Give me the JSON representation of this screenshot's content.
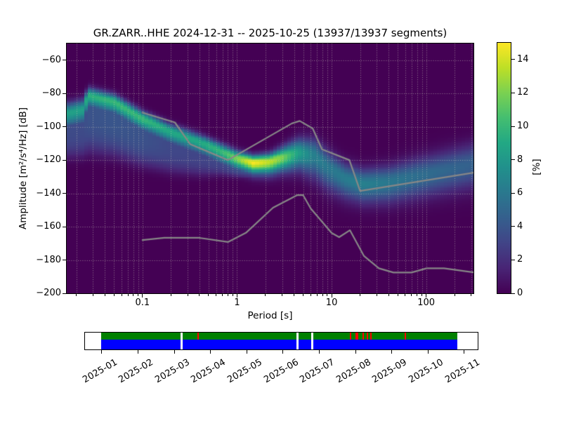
{
  "title": "GR.ZARR..HHE   2024-12-31 -- 2025-10-25  (13937/13937 segments)",
  "station": "GR.ZARR..HHE",
  "date_range": "2024-12-31 -- 2025-10-25",
  "segments": "13937/13937",
  "chart_data": {
    "type": "heatmap",
    "title": "GR.ZARR..HHE   2024-12-31 -- 2025-10-25  (13937/13937 segments)",
    "xlabel": "Period [s]",
    "ylabel": "Amplitude [m²/s⁴/Hz] [dB]",
    "colorbar_label": "[%]",
    "x_scale": "log",
    "xlim": [
      0.0158,
      316.23
    ],
    "ylim": [
      -200,
      -50
    ],
    "clim": [
      0,
      15
    ],
    "grid": "dotted",
    "legend": "none",
    "colormap": "viridis",
    "x_ticks": [
      0.1,
      1,
      10,
      100
    ],
    "x_tick_labels": [
      "0.1",
      "1",
      "10",
      "100"
    ],
    "y_ticks": [
      -60,
      -80,
      -100,
      -120,
      -140,
      -160,
      -180,
      -200
    ],
    "y_tick_labels": [
      "−60",
      "−80",
      "−100",
      "−120",
      "−140",
      "−160",
      "−180",
      "−200"
    ],
    "colorbar_ticks": [
      0,
      2,
      4,
      6,
      8,
      10,
      12,
      14
    ],
    "colorbar_tick_labels": [
      "0",
      "2",
      "4",
      "6",
      "8",
      "10",
      "12",
      "14"
    ],
    "viridis_stops": [
      [
        0.0,
        68,
        1,
        84
      ],
      [
        0.1,
        72,
        36,
        117
      ],
      [
        0.2,
        65,
        68,
        135
      ],
      [
        0.3,
        53,
        95,
        141
      ],
      [
        0.4,
        42,
        120,
        142
      ],
      [
        0.5,
        33,
        144,
        140
      ],
      [
        0.6,
        34,
        168,
        132
      ],
      [
        0.7,
        68,
        190,
        112
      ],
      [
        0.8,
        122,
        209,
        81
      ],
      [
        0.9,
        189,
        223,
        38
      ],
      [
        1.0,
        253,
        231,
        37
      ]
    ],
    "ppsd_ridge_note": "mode curve of PPSD: [period s, mode dB, peak %, sigma_up dB, sigma_down dB, shelf fraction, shelf depth dB]",
    "ppsd_ridge": [
      [
        0.0158,
        -92.0,
        8.5,
        4.0,
        6.0,
        0.4,
        26
      ],
      [
        0.024,
        -89.5,
        8.5,
        4.0,
        6.0,
        0.4,
        28
      ],
      [
        0.0265,
        -81.0,
        9.5,
        3.0,
        5.0,
        0.4,
        34
      ],
      [
        0.05,
        -85.0,
        10.0,
        3.0,
        5.0,
        0.4,
        32
      ],
      [
        0.1,
        -95.0,
        10.0,
        3.0,
        5.0,
        0.38,
        28
      ],
      [
        0.2,
        -103.0,
        9.0,
        3.0,
        5.0,
        0.36,
        24
      ],
      [
        0.4,
        -109.0,
        9.0,
        3.0,
        5.0,
        0.34,
        20
      ],
      [
        0.7,
        -115.0,
        10.0,
        3.0,
        5.0,
        0.32,
        14
      ],
      [
        1.0,
        -119.0,
        12.0,
        3.0,
        4.5,
        0.32,
        11
      ],
      [
        1.5,
        -121.5,
        15.0,
        2.8,
        4.5,
        0.3,
        9
      ],
      [
        2.2,
        -121.0,
        13.5,
        3.2,
        5.0,
        0.3,
        9
      ],
      [
        3.0,
        -118.5,
        12.0,
        4.0,
        5.5,
        0.3,
        10
      ],
      [
        4.5,
        -115.5,
        8.5,
        5.5,
        7.0,
        0.35,
        12
      ],
      [
        6.5,
        -117.0,
        6.5,
        6.5,
        9.0,
        0.4,
        14
      ],
      [
        9.0,
        -124.0,
        6.0,
        6.5,
        9.0,
        0.3,
        12
      ],
      [
        14.0,
        -131.0,
        6.2,
        6.0,
        8.0,
        0.25,
        11
      ],
      [
        22.0,
        -134.5,
        6.5,
        6.0,
        7.5,
        0.22,
        10
      ],
      [
        40.0,
        -133.5,
        6.0,
        6.5,
        8.0,
        0.22,
        10
      ],
      [
        70.0,
        -130.5,
        5.5,
        7.0,
        8.5,
        0.22,
        10
      ],
      [
        150.0,
        -126.5,
        5.0,
        7.5,
        9.0,
        0.22,
        11
      ],
      [
        316.23,
        -122.5,
        4.6,
        8.0,
        9.5,
        0.22,
        12
      ]
    ],
    "noise_models": {
      "color": "#878787",
      "nhnm": [
        [
          0.1,
          -91.5
        ],
        [
          0.22,
          -97.4
        ],
        [
          0.32,
          -110.5
        ],
        [
          0.8,
          -120.0
        ],
        [
          3.8,
          -98.0
        ],
        [
          4.6,
          -96.5
        ],
        [
          6.3,
          -101.0
        ],
        [
          7.9,
          -113.5
        ],
        [
          15.4,
          -120.0
        ],
        [
          20.0,
          -138.5
        ],
        [
          316.23,
          -127.6
        ]
      ],
      "nlnm": [
        [
          0.1,
          -168.0
        ],
        [
          0.17,
          -166.7
        ],
        [
          0.4,
          -166.7
        ],
        [
          0.8,
          -169.2
        ],
        [
          1.24,
          -163.7
        ],
        [
          2.4,
          -148.6
        ],
        [
          4.3,
          -141.1
        ],
        [
          5.0,
          -141.1
        ],
        [
          6.0,
          -149.0
        ],
        [
          10.0,
          -163.8
        ],
        [
          12.0,
          -166.3
        ],
        [
          15.6,
          -162.1
        ],
        [
          21.9,
          -177.5
        ],
        [
          31.6,
          -185.0
        ],
        [
          45.0,
          -187.5
        ],
        [
          70.0,
          -187.5
        ],
        [
          101.0,
          -185.0
        ],
        [
          154.0,
          -185.0
        ],
        [
          316.23,
          -187.4
        ]
      ]
    }
  },
  "timeline": {
    "green": "#008000",
    "blue": "#0000ff",
    "red": "#ff0000",
    "coverage_start_f": 0.0416,
    "coverage_end_f": 0.948,
    "gaps_f": [
      0.246,
      0.542,
      0.578
    ],
    "red_marks": [
      [
        0.288,
        2
      ],
      [
        0.676,
        2
      ],
      [
        0.692,
        4
      ],
      [
        0.708,
        2
      ],
      [
        0.719,
        2
      ],
      [
        0.728,
        2
      ],
      [
        0.816,
        2
      ]
    ],
    "months": [
      {
        "label": "2025-01",
        "f": 0.0429
      },
      {
        "label": "2025-02",
        "f": 0.1352
      },
      {
        "label": "2025-03",
        "f": 0.2275
      },
      {
        "label": "2025-04",
        "f": 0.3198
      },
      {
        "label": "2025-05",
        "f": 0.4121
      },
      {
        "label": "2025-06",
        "f": 0.5044
      },
      {
        "label": "2025-07",
        "f": 0.5967
      },
      {
        "label": "2025-08",
        "f": 0.689
      },
      {
        "label": "2025-09",
        "f": 0.7813
      },
      {
        "label": "2025-10",
        "f": 0.8736
      },
      {
        "label": "2025-11",
        "f": 0.9659
      }
    ]
  }
}
